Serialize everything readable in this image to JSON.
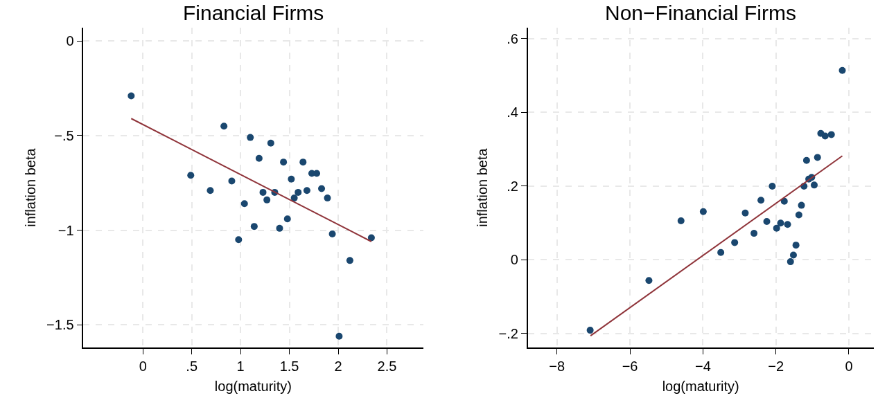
{
  "chart_data": [
    {
      "type": "scatter",
      "title": "Financial Firms",
      "xlabel": "log(maturity)",
      "ylabel": "inflation beta",
      "grid": true,
      "xlim": [
        -0.61,
        2.87
      ],
      "ylim": [
        -1.62,
        0.07
      ],
      "xticks": [
        0,
        {
          "value": 0.5,
          "label": ".5"
        },
        1,
        {
          "value": 1.5,
          "label": "1.5"
        },
        2,
        {
          "value": 2.5,
          "label": "2.5"
        }
      ],
      "yticks": [
        {
          "value": -1.5,
          "label": "−1.5"
        },
        {
          "value": -1,
          "label": "−1"
        },
        {
          "value": -0.5,
          "label": "−.5"
        },
        0
      ],
      "series": [
        {
          "marker": "circle",
          "color": "#1a476f",
          "x": [
            -0.12,
            0.83,
            1.1,
            1.31,
            1.19,
            1.44,
            1.64,
            1.73,
            1.78,
            1.52,
            0.49,
            0.91,
            0.69,
            1.23,
            1.35,
            1.59,
            1.55,
            1.68,
            1.83,
            1.89,
            1.27,
            1.04,
            1.48,
            1.14,
            1.4,
            0.98,
            1.94,
            2.34,
            2.12,
            2.01
          ],
          "values": [
            -0.29,
            -0.45,
            -0.51,
            -0.54,
            -0.62,
            -0.64,
            -0.64,
            -0.7,
            -0.7,
            -0.73,
            -0.71,
            -0.74,
            -0.79,
            -0.8,
            -0.8,
            -0.8,
            -0.83,
            -0.79,
            -0.78,
            -0.83,
            -0.84,
            -0.86,
            -0.94,
            -0.98,
            -0.99,
            -1.05,
            -1.02,
            -1.04,
            -1.16,
            -1.56
          ]
        },
        {
          "type": "line",
          "color": "#90353b",
          "x": [
            -0.12,
            2.34
          ],
          "values": [
            -0.41,
            -1.06
          ]
        }
      ]
    },
    {
      "type": "scatter",
      "title": "Non−Financial Firms",
      "xlabel": "log(maturity)",
      "ylabel": "inflation beta",
      "grid": true,
      "xlim": [
        -8.8,
        0.68
      ],
      "ylim": [
        -0.238,
        0.63
      ],
      "xticks": [
        {
          "value": -8,
          "label": "−8"
        },
        {
          "value": -6,
          "label": "−6"
        },
        {
          "value": -4,
          "label": "−4"
        },
        {
          "value": -2,
          "label": "−2"
        },
        0
      ],
      "yticks": [
        {
          "value": -0.2,
          "label": "−.2"
        },
        0,
        {
          "value": 0.2,
          "label": ".2"
        },
        {
          "value": 0.4,
          "label": ".4"
        },
        {
          "value": 0.6,
          "label": ".6"
        }
      ],
      "series": [
        {
          "marker": "circle",
          "color": "#1a476f",
          "x": [
            -7.09,
            -5.48,
            -4.6,
            -3.99,
            -3.51,
            -3.13,
            -2.84,
            -2.6,
            -2.41,
            -2.25,
            -2.1,
            -1.98,
            -1.87,
            -1.77,
            -1.68,
            -1.6,
            -1.52,
            -1.45,
            -1.37,
            -1.3,
            -1.23,
            -1.16,
            -1.1,
            -1.02,
            -0.95,
            -0.86,
            -0.77,
            -0.65,
            -0.48,
            -0.18
          ],
          "values": [
            -0.191,
            -0.056,
            0.106,
            0.131,
            0.02,
            0.047,
            0.127,
            0.072,
            0.162,
            0.104,
            0.2,
            0.086,
            0.1,
            0.159,
            0.096,
            -0.005,
            0.013,
            0.04,
            0.122,
            0.148,
            0.2,
            0.27,
            0.219,
            0.224,
            0.203,
            0.278,
            0.343,
            0.336,
            0.34,
            0.514
          ]
        },
        {
          "type": "line",
          "color": "#90353b",
          "x": [
            -7.08,
            -0.18
          ],
          "values": [
            -0.206,
            0.282
          ]
        }
      ]
    }
  ]
}
